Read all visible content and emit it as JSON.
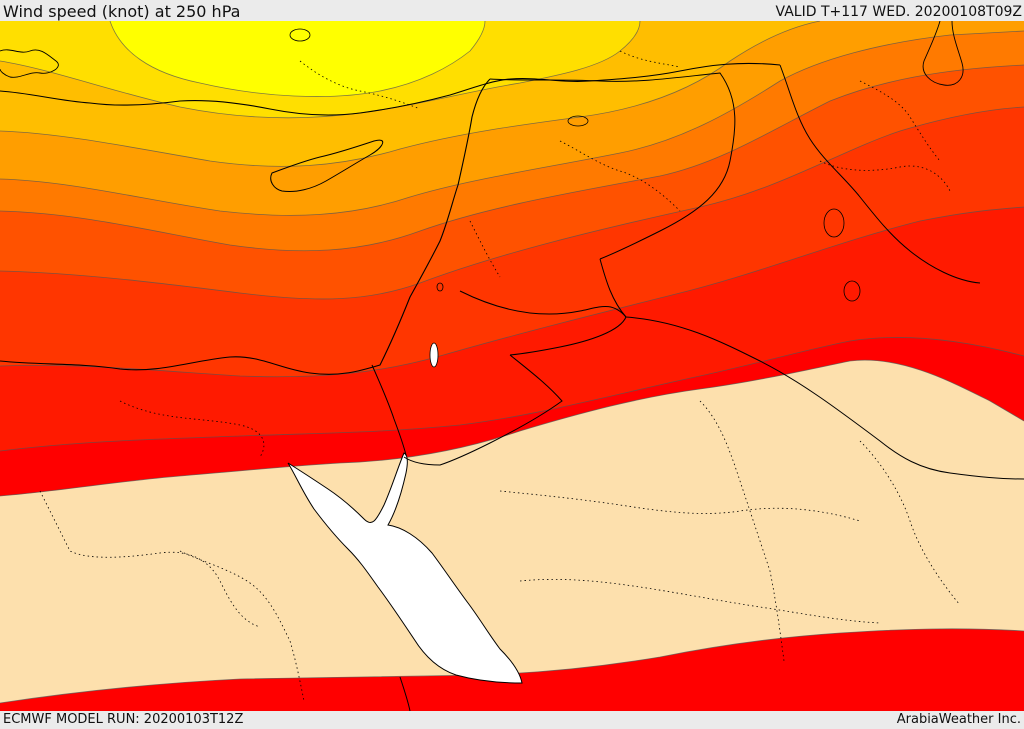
{
  "header": {
    "title": "Wind speed (knot) at 250 hPa",
    "valid_time": "VALID T+117 WED. 20200108T09Z"
  },
  "footer": {
    "model_run": "ECMWF MODEL RUN: 20200103T12Z",
    "credit": "ArabiaWeather Inc."
  },
  "colors": {
    "band_yellow": "#ffff00",
    "band_gold": "#ffdf00",
    "band_amber": "#ffbe00",
    "band_orange_light": "#ff9e00",
    "band_orange": "#ff7a00",
    "band_orange_dark": "#ff5200",
    "band_red_orange": "#ff3600",
    "band_red_strong": "#ff1a00",
    "band_red": "#ff0000",
    "low_wind_tan": "#fde0ad",
    "sea": "#ffffff",
    "border": "#000000",
    "contour": "#555555"
  },
  "map_layers": {
    "bands": [
      "band_yellow",
      "band_gold",
      "band_amber",
      "band_orange_light",
      "band_orange",
      "band_orange_dark",
      "band_red_orange",
      "band_red_strong",
      "band_red",
      "low_wind_tan"
    ],
    "features": [
      "coastlines",
      "national-borders",
      "internal-boundaries",
      "wind-contours",
      "red-sea"
    ]
  }
}
